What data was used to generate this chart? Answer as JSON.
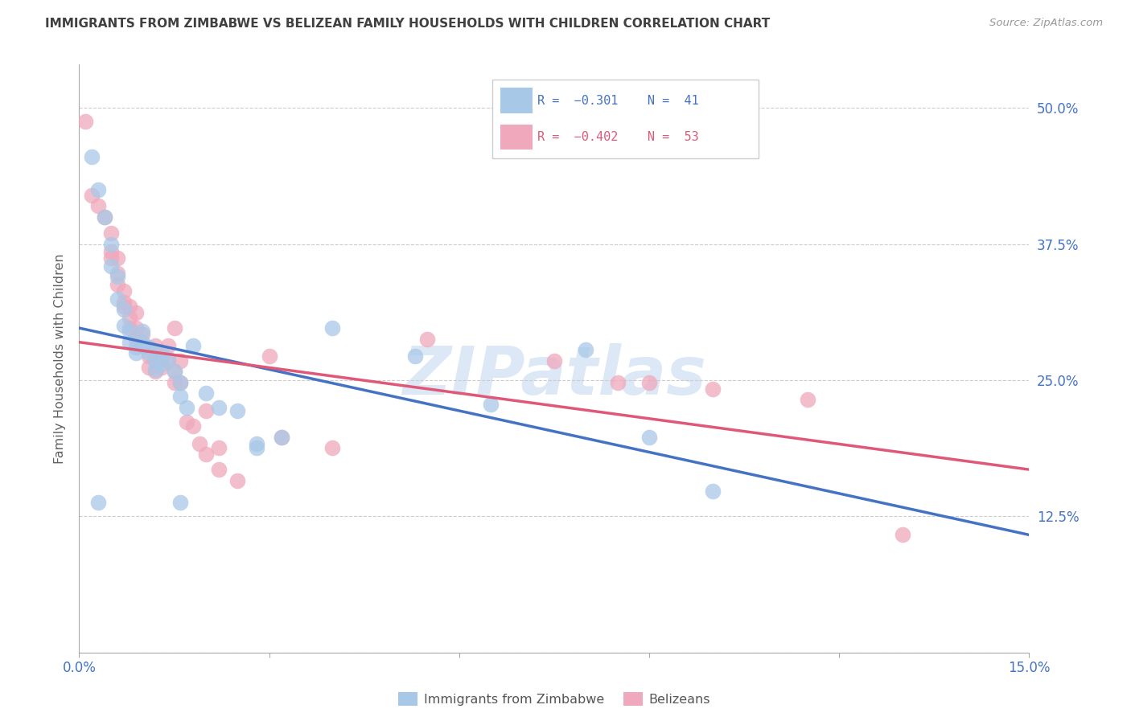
{
  "title": "IMMIGRANTS FROM ZIMBABWE VS BELIZEAN FAMILY HOUSEHOLDS WITH CHILDREN CORRELATION CHART",
  "source": "Source: ZipAtlas.com",
  "ylabel": "Family Households with Children",
  "x_ticks": [
    0.0,
    0.03,
    0.06,
    0.09,
    0.12,
    0.15
  ],
  "x_tick_labels": [
    "0.0%",
    "",
    "",
    "",
    "",
    "15.0%"
  ],
  "y_ticks": [
    0.0,
    0.125,
    0.25,
    0.375,
    0.5
  ],
  "y_tick_labels_right": [
    "",
    "12.5%",
    "25.0%",
    "37.5%",
    "50.0%"
  ],
  "xlim": [
    0.0,
    0.15
  ],
  "ylim": [
    0.04,
    0.54
  ],
  "blue_color": "#a8c8e8",
  "pink_color": "#f0a8bc",
  "blue_line_color": "#4472c4",
  "pink_line_color": "#e05878",
  "grid_color": "#cccccc",
  "axis_label_color": "#4472c4",
  "title_color": "#404040",
  "watermark_color": "#dce8f5",
  "blue_scatter": [
    [
      0.002,
      0.455
    ],
    [
      0.003,
      0.425
    ],
    [
      0.004,
      0.4
    ],
    [
      0.005,
      0.375
    ],
    [
      0.005,
      0.355
    ],
    [
      0.006,
      0.345
    ],
    [
      0.006,
      0.325
    ],
    [
      0.007,
      0.315
    ],
    [
      0.007,
      0.3
    ],
    [
      0.008,
      0.295
    ],
    [
      0.008,
      0.285
    ],
    [
      0.009,
      0.28
    ],
    [
      0.009,
      0.275
    ],
    [
      0.01,
      0.295
    ],
    [
      0.01,
      0.285
    ],
    [
      0.011,
      0.275
    ],
    [
      0.011,
      0.28
    ],
    [
      0.012,
      0.268
    ],
    [
      0.012,
      0.26
    ],
    [
      0.013,
      0.275
    ],
    [
      0.013,
      0.265
    ],
    [
      0.014,
      0.27
    ],
    [
      0.015,
      0.258
    ],
    [
      0.016,
      0.248
    ],
    [
      0.016,
      0.235
    ],
    [
      0.017,
      0.225
    ],
    [
      0.018,
      0.282
    ],
    [
      0.02,
      0.238
    ],
    [
      0.022,
      0.225
    ],
    [
      0.025,
      0.222
    ],
    [
      0.028,
      0.192
    ],
    [
      0.028,
      0.188
    ],
    [
      0.032,
      0.198
    ],
    [
      0.04,
      0.298
    ],
    [
      0.053,
      0.272
    ],
    [
      0.065,
      0.228
    ],
    [
      0.08,
      0.278
    ],
    [
      0.09,
      0.198
    ],
    [
      0.1,
      0.148
    ],
    [
      0.003,
      0.138
    ],
    [
      0.016,
      0.138
    ]
  ],
  "pink_scatter": [
    [
      0.001,
      0.488
    ],
    [
      0.002,
      0.42
    ],
    [
      0.003,
      0.41
    ],
    [
      0.004,
      0.4
    ],
    [
      0.005,
      0.385
    ],
    [
      0.005,
      0.368
    ],
    [
      0.005,
      0.362
    ],
    [
      0.006,
      0.362
    ],
    [
      0.006,
      0.348
    ],
    [
      0.006,
      0.338
    ],
    [
      0.007,
      0.332
    ],
    [
      0.007,
      0.322
    ],
    [
      0.007,
      0.318
    ],
    [
      0.008,
      0.318
    ],
    [
      0.008,
      0.308
    ],
    [
      0.008,
      0.298
    ],
    [
      0.009,
      0.312
    ],
    [
      0.009,
      0.298
    ],
    [
      0.009,
      0.288
    ],
    [
      0.01,
      0.292
    ],
    [
      0.01,
      0.282
    ],
    [
      0.011,
      0.272
    ],
    [
      0.011,
      0.262
    ],
    [
      0.012,
      0.282
    ],
    [
      0.012,
      0.268
    ],
    [
      0.012,
      0.258
    ],
    [
      0.013,
      0.272
    ],
    [
      0.013,
      0.262
    ],
    [
      0.014,
      0.282
    ],
    [
      0.014,
      0.268
    ],
    [
      0.015,
      0.298
    ],
    [
      0.015,
      0.258
    ],
    [
      0.015,
      0.248
    ],
    [
      0.016,
      0.268
    ],
    [
      0.016,
      0.248
    ],
    [
      0.017,
      0.212
    ],
    [
      0.018,
      0.208
    ],
    [
      0.019,
      0.192
    ],
    [
      0.02,
      0.222
    ],
    [
      0.02,
      0.182
    ],
    [
      0.022,
      0.188
    ],
    [
      0.022,
      0.168
    ],
    [
      0.025,
      0.158
    ],
    [
      0.03,
      0.272
    ],
    [
      0.032,
      0.198
    ],
    [
      0.04,
      0.188
    ],
    [
      0.055,
      0.288
    ],
    [
      0.075,
      0.268
    ],
    [
      0.085,
      0.248
    ],
    [
      0.09,
      0.248
    ],
    [
      0.1,
      0.242
    ],
    [
      0.115,
      0.232
    ],
    [
      0.13,
      0.108
    ]
  ],
  "blue_line_x": [
    0.0,
    0.15
  ],
  "blue_line_y": [
    0.298,
    0.108
  ],
  "pink_line_x": [
    0.0,
    0.15
  ],
  "pink_line_y": [
    0.285,
    0.168
  ]
}
